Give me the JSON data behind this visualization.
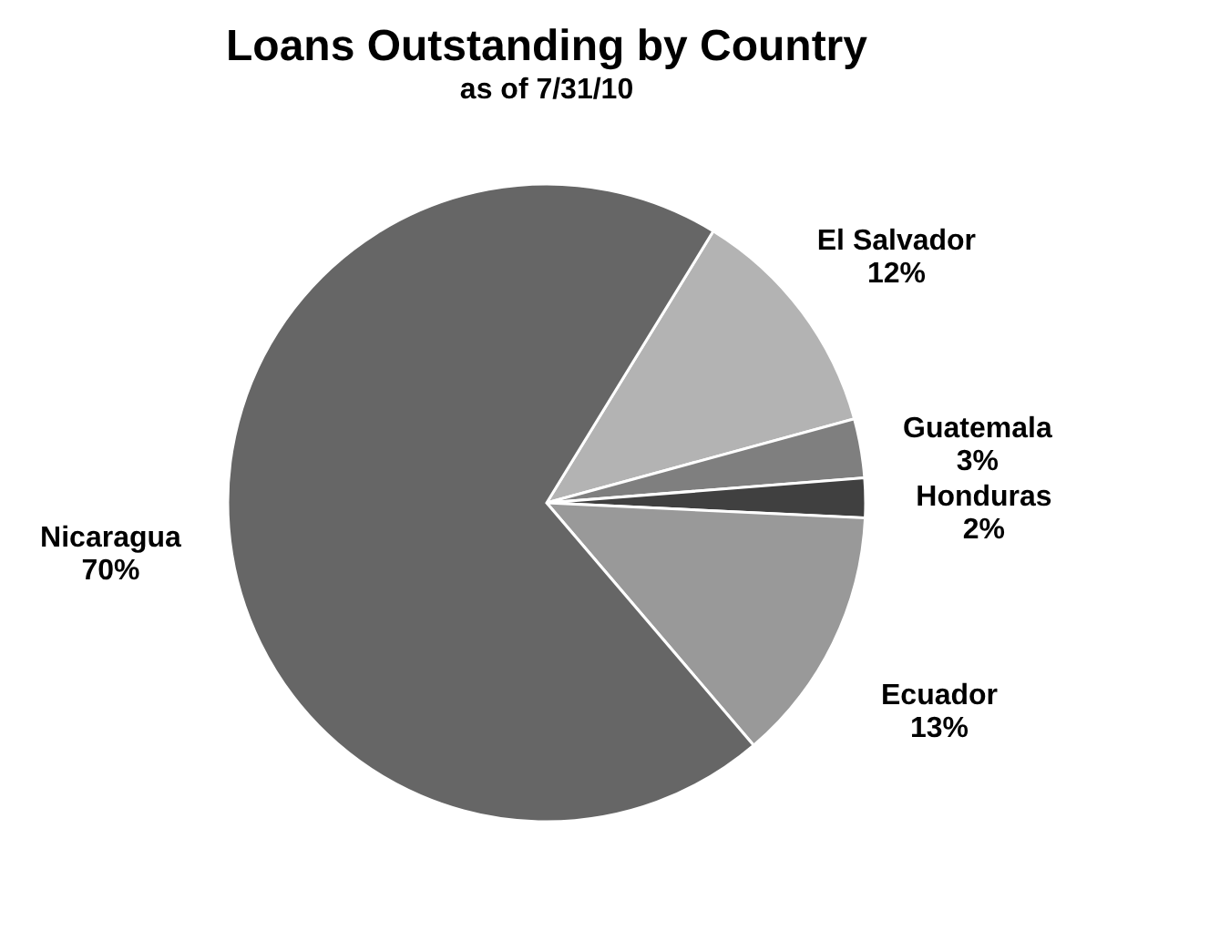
{
  "chart_data": {
    "type": "pie",
    "title": "Loans Outstanding by Country",
    "subtitle": "as of 7/31/10",
    "categories": [
      "El Salvador",
      "Guatemala",
      "Honduras",
      "Ecuador",
      "Nicaragua"
    ],
    "values": [
      12,
      3,
      2,
      13,
      70
    ],
    "value_labels": [
      "12%",
      "3%",
      "2%",
      "13%",
      "70%"
    ],
    "colors": [
      "#b3b3b3",
      "#7f7f7f",
      "#404040",
      "#999999",
      "#666666"
    ],
    "legend": false
  }
}
